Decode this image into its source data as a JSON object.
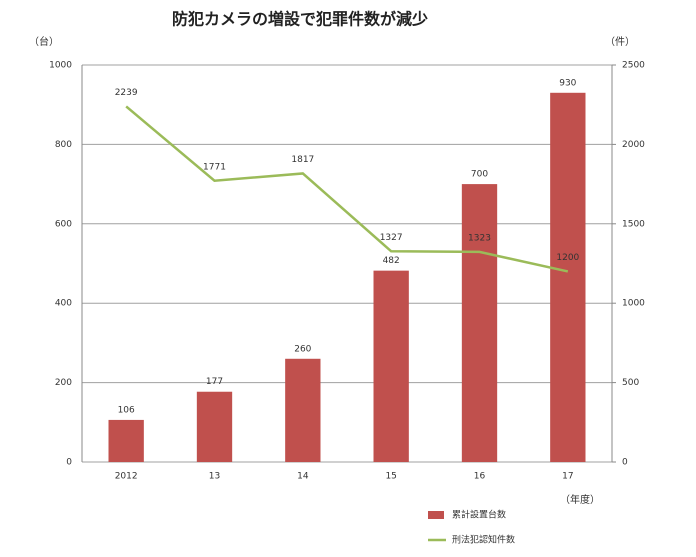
{
  "chart_data": {
    "type": "bar",
    "title": "防犯カメラの増設で犯罪件数が減少",
    "y_unit": "（台）",
    "y2_unit": "（件）",
    "x_unit": "（年度）",
    "categories": [
      "2012",
      "13",
      "14",
      "15",
      "16",
      "17"
    ],
    "series": [
      {
        "name": "累計設置台数",
        "type": "bar",
        "color": "#c0504d",
        "values": [
          106,
          177,
          260,
          482,
          700,
          930
        ]
      },
      {
        "name": "刑法犯認知件数",
        "type": "line",
        "axis": "y2",
        "color": "#9bbb59",
        "values": [
          2239,
          1771,
          1817,
          1327,
          1323,
          1200
        ]
      }
    ],
    "ylim": [
      0,
      1000
    ],
    "yticks": [
      0,
      200,
      400,
      600,
      800,
      1000
    ],
    "y2lim": [
      0,
      2500
    ],
    "y2ticks": [
      0,
      500,
      1000,
      1500,
      2000,
      2500
    ],
    "grid": true,
    "legend": "bottom-right"
  }
}
